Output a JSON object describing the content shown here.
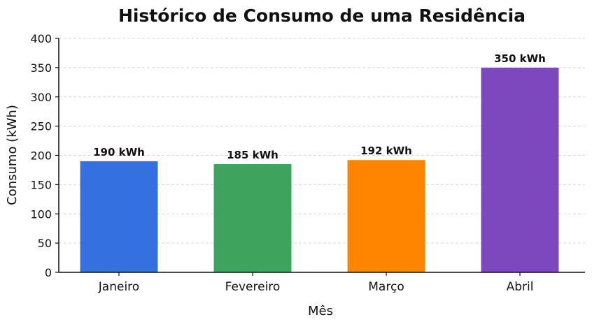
{
  "chart_data": {
    "type": "bar",
    "title": "Histórico de Consumo de uma Residência",
    "xlabel": "Mês",
    "ylabel": "Consumo (kWh)",
    "categories": [
      "Janeiro",
      "Fevereiro",
      "Março",
      "Abril"
    ],
    "values": [
      190,
      185,
      192,
      350
    ],
    "data_labels": [
      "190 kWh",
      "185 kWh",
      "192 kWh",
      "350 kWh"
    ],
    "colors": [
      "#3570e0",
      "#3da35d",
      "#ff8500",
      "#7d48bd"
    ],
    "ylim": [
      0,
      400
    ],
    "yticks": [
      0,
      50,
      100,
      150,
      200,
      250,
      300,
      350,
      400
    ],
    "grid": true,
    "legend": "none"
  }
}
